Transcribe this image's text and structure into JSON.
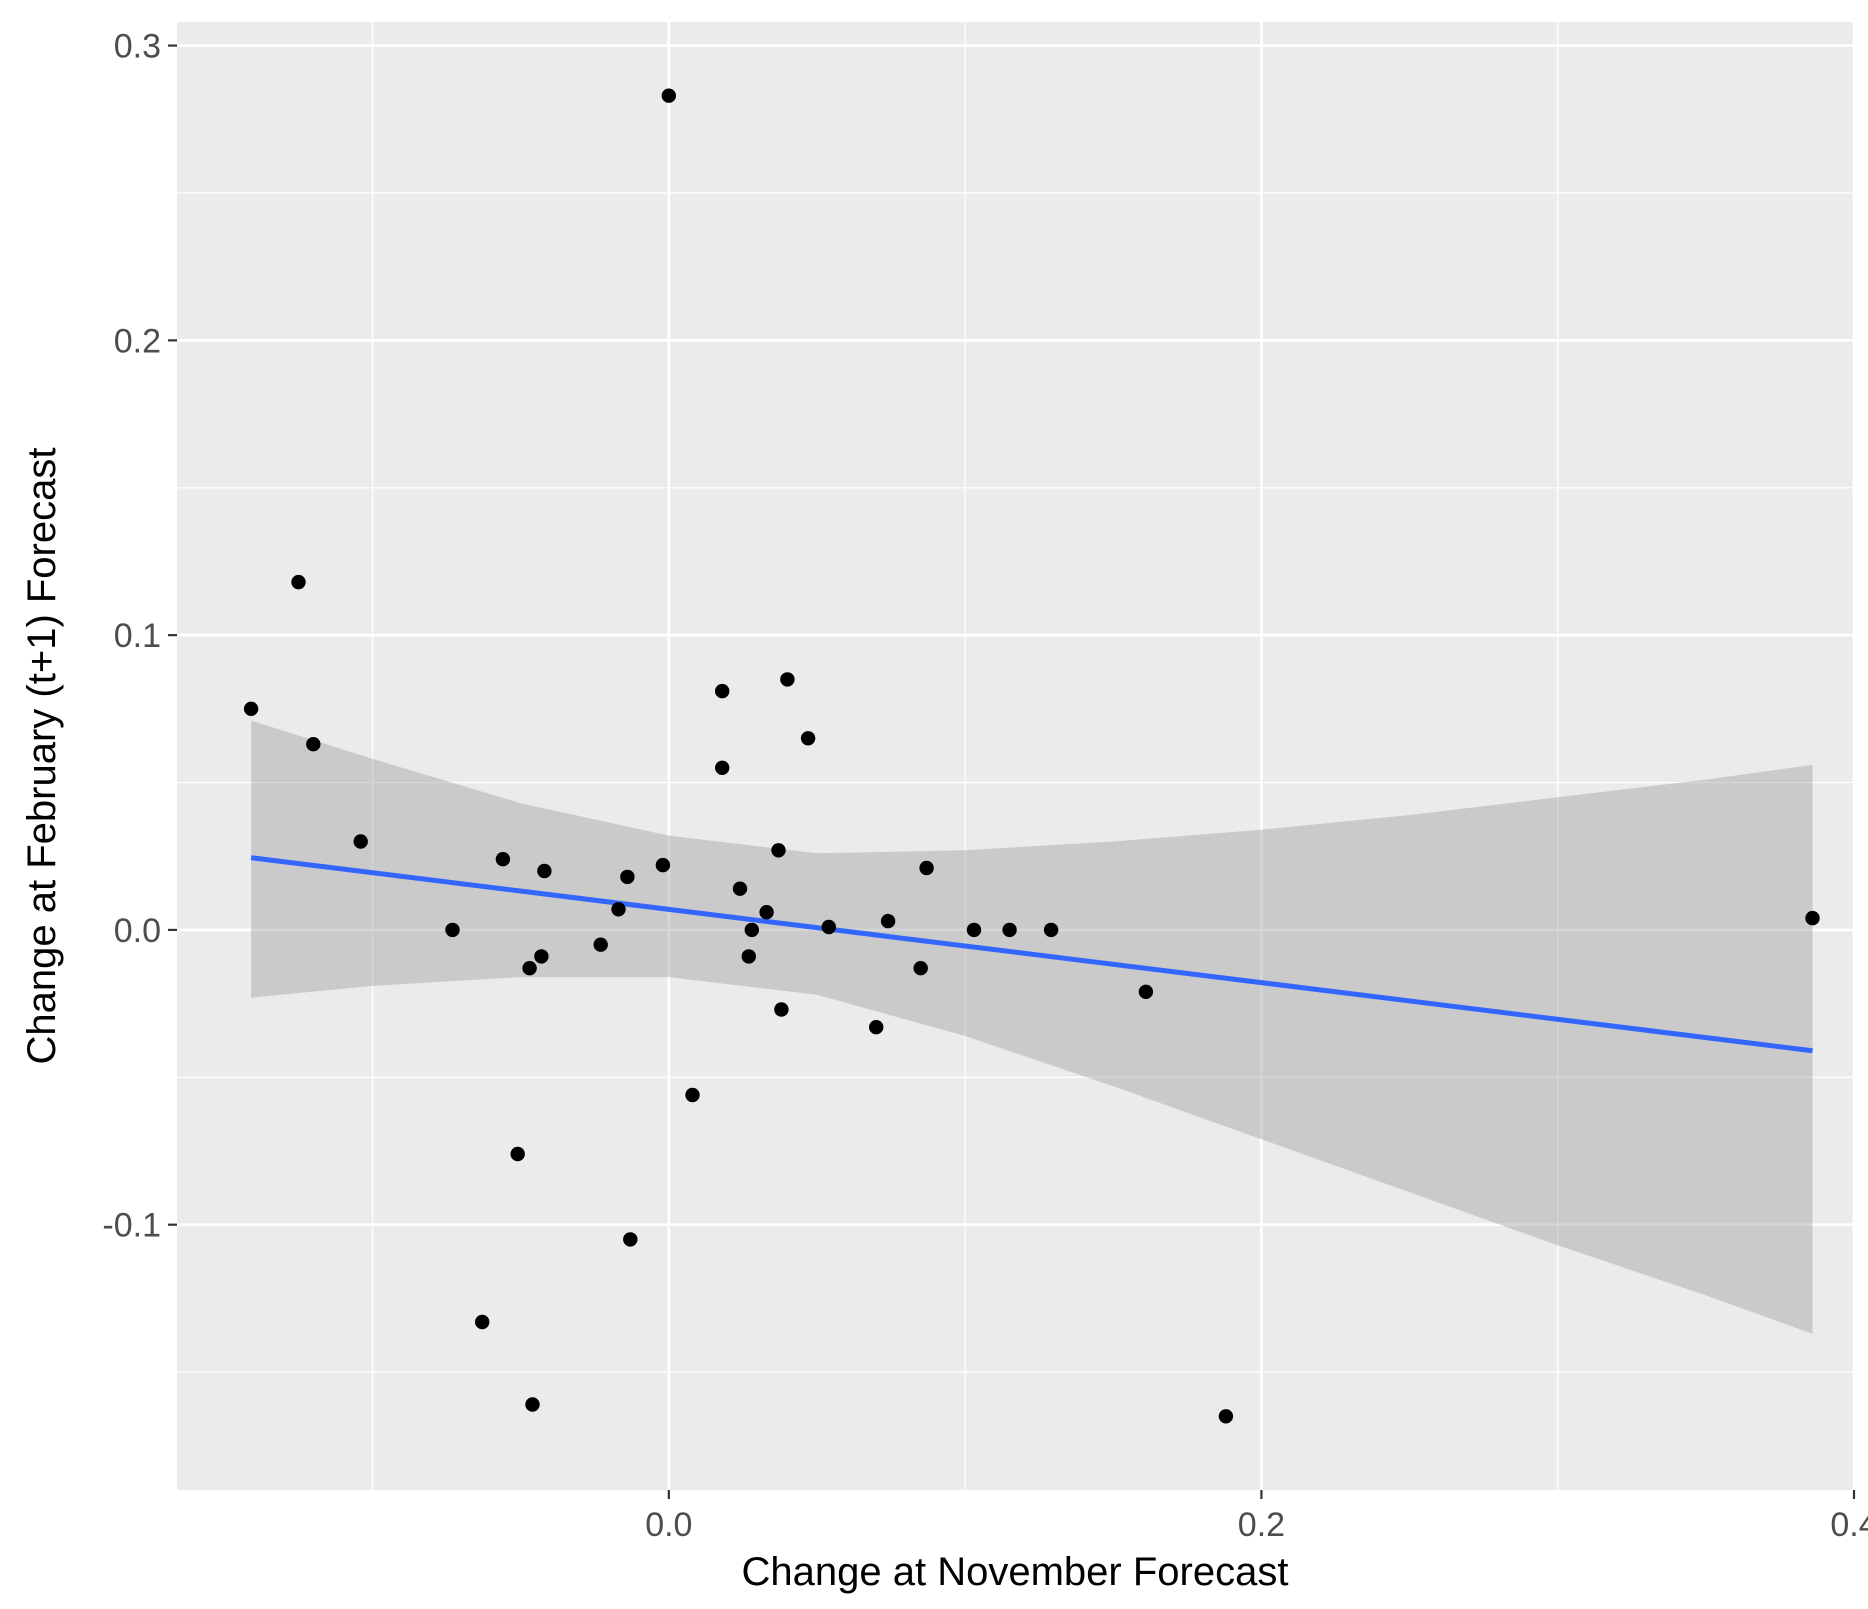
{
  "chart_data": {
    "type": "scatter",
    "xlabel": "Change at November Forecast",
    "ylabel": "Change at February (t+1) Forecast",
    "xlim": [
      -0.166,
      0.4
    ],
    "ylim": [
      -0.19,
      0.308
    ],
    "x_ticks": [
      0.0,
      0.2,
      0.4
    ],
    "x_tick_labels": [
      "0.0",
      "0.2",
      "0.4"
    ],
    "y_ticks": [
      -0.1,
      0.0,
      0.1,
      0.2,
      0.3
    ],
    "y_tick_labels": [
      "-0.1",
      "0.0",
      "0.1",
      "0.2",
      "0.3"
    ],
    "grid": true,
    "legend": "none",
    "colors": {
      "panel": "#ebebeb",
      "grid": "#ffffff",
      "points": "#000000",
      "fit_line": "#3366ff",
      "ribbon": "#999999"
    },
    "points": [
      {
        "x": -0.141,
        "y": 0.075
      },
      {
        "x": -0.125,
        "y": 0.118
      },
      {
        "x": -0.12,
        "y": 0.063
      },
      {
        "x": -0.104,
        "y": 0.03
      },
      {
        "x": -0.073,
        "y": 0.0
      },
      {
        "x": -0.063,
        "y": -0.133
      },
      {
        "x": -0.056,
        "y": 0.024
      },
      {
        "x": -0.051,
        "y": -0.076
      },
      {
        "x": -0.047,
        "y": -0.013
      },
      {
        "x": -0.046,
        "y": -0.161
      },
      {
        "x": -0.043,
        "y": -0.009
      },
      {
        "x": -0.042,
        "y": 0.02
      },
      {
        "x": -0.023,
        "y": -0.005
      },
      {
        "x": -0.017,
        "y": 0.007
      },
      {
        "x": -0.014,
        "y": 0.018
      },
      {
        "x": -0.013,
        "y": -0.105
      },
      {
        "x": -0.002,
        "y": 0.022
      },
      {
        "x": 0.0,
        "y": 0.283
      },
      {
        "x": 0.008,
        "y": -0.056
      },
      {
        "x": 0.018,
        "y": 0.081
      },
      {
        "x": 0.018,
        "y": 0.055
      },
      {
        "x": 0.024,
        "y": 0.014
      },
      {
        "x": 0.027,
        "y": -0.009
      },
      {
        "x": 0.028,
        "y": 0.0
      },
      {
        "x": 0.033,
        "y": 0.006
      },
      {
        "x": 0.037,
        "y": 0.027
      },
      {
        "x": 0.038,
        "y": -0.027
      },
      {
        "x": 0.04,
        "y": 0.085
      },
      {
        "x": 0.047,
        "y": 0.065
      },
      {
        "x": 0.054,
        "y": 0.001
      },
      {
        "x": 0.07,
        "y": -0.033
      },
      {
        "x": 0.074,
        "y": 0.003
      },
      {
        "x": 0.085,
        "y": -0.013
      },
      {
        "x": 0.087,
        "y": 0.021
      },
      {
        "x": 0.103,
        "y": 0.0
      },
      {
        "x": 0.115,
        "y": 0.0
      },
      {
        "x": 0.129,
        "y": 0.0
      },
      {
        "x": 0.161,
        "y": -0.021
      },
      {
        "x": 0.188,
        "y": -0.165
      },
      {
        "x": 0.386,
        "y": 0.004
      }
    ],
    "fit_line": {
      "x": [
        -0.141,
        0.386
      ],
      "y": [
        0.0245,
        -0.041
      ]
    },
    "confidence_band": {
      "x": [
        -0.141,
        -0.1,
        -0.05,
        0.0,
        0.05,
        0.1,
        0.15,
        0.2,
        0.25,
        0.3,
        0.35,
        0.386
      ],
      "upper": [
        0.071,
        0.058,
        0.043,
        0.032,
        0.026,
        0.027,
        0.03,
        0.034,
        0.039,
        0.045,
        0.051,
        0.056
      ],
      "lower": [
        -0.023,
        -0.019,
        -0.016,
        -0.016,
        -0.022,
        -0.036,
        -0.053,
        -0.071,
        -0.089,
        -0.107,
        -0.124,
        -0.137
      ]
    }
  }
}
